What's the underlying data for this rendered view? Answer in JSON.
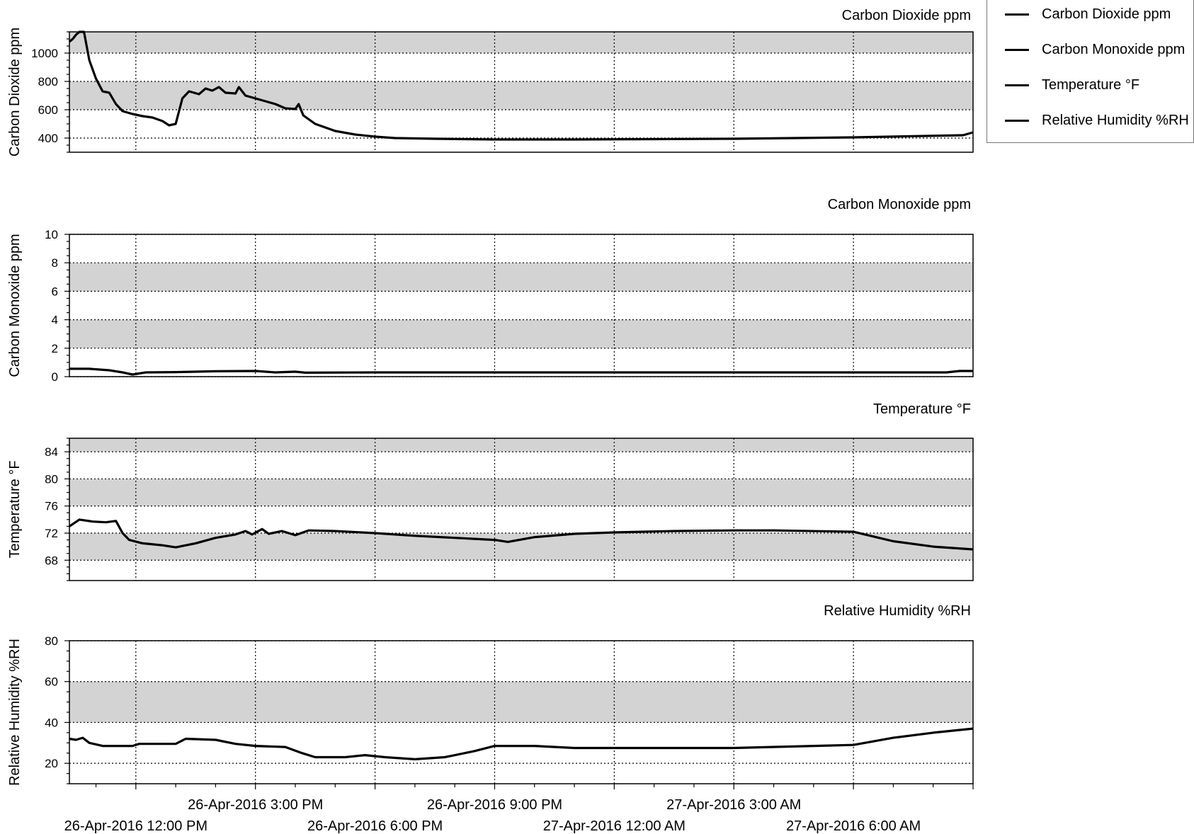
{
  "legend": {
    "items": [
      {
        "label": "Carbon Dioxide ppm",
        "color": "#000000"
      },
      {
        "label": "Carbon Monoxide ppm",
        "color": "#000000"
      },
      {
        "label": "Temperature °F",
        "color": "#000000"
      },
      {
        "label": "Relative Humidity %RH",
        "color": "#000000"
      }
    ]
  },
  "colors": {
    "band": "#d3d3d3",
    "line": "#000000",
    "grid": "#000000"
  },
  "x_axis": {
    "domain": [
      "2016-04-26T10:20",
      "2016-04-27T09:00"
    ],
    "gridlines": [
      "2016-04-26T12:00",
      "2016-04-26T15:00",
      "2016-04-26T18:00",
      "2016-04-26T21:00",
      "2016-04-27T00:00",
      "2016-04-27T03:00",
      "2016-04-27T06:00"
    ],
    "tick_labels_upper": [
      {
        "at": "2016-04-26T15:00",
        "label": "26-Apr-2016 3:00 PM"
      },
      {
        "at": "2016-04-26T21:00",
        "label": "26-Apr-2016 9:00 PM"
      },
      {
        "at": "2016-04-27T03:00",
        "label": "27-Apr-2016 3:00 AM"
      }
    ],
    "tick_labels_lower": [
      {
        "at": "2016-04-26T12:00",
        "label": "26-Apr-2016 12:00 PM"
      },
      {
        "at": "2016-04-26T18:00",
        "label": "26-Apr-2016 6:00 PM"
      },
      {
        "at": "2016-04-27T00:00",
        "label": "27-Apr-2016 12:00 AM"
      },
      {
        "at": "2016-04-27T06:00",
        "label": "27-Apr-2016 6:00 AM"
      }
    ]
  },
  "chart_data": [
    {
      "type": "line",
      "title": "Carbon Dioxide ppm",
      "ylabel": "Carbon Dioxide ppm",
      "ylim": [
        300,
        1150
      ],
      "yticks": [
        400,
        600,
        800,
        1000,
        1200
      ],
      "bands": [
        [
          600,
          800
        ],
        [
          1000,
          1200
        ]
      ],
      "grid": true,
      "legend": "top-right",
      "series": [
        {
          "name": "Carbon Dioxide ppm",
          "points": [
            [
              "2016-04-26T10:20",
              1080
            ],
            [
              "2016-04-26T10:25",
              1100
            ],
            [
              "2016-04-26T10:30",
              1130
            ],
            [
              "2016-04-26T10:35",
              1170
            ],
            [
              "2016-04-26T10:38",
              1255
            ],
            [
              "2016-04-26T10:42",
              1150
            ],
            [
              "2016-04-26T10:50",
              950
            ],
            [
              "2016-04-26T11:00",
              820
            ],
            [
              "2016-04-26T11:10",
              730
            ],
            [
              "2016-04-26T11:20",
              720
            ],
            [
              "2016-04-26T11:30",
              640
            ],
            [
              "2016-04-26T11:40",
              590
            ],
            [
              "2016-04-26T11:55",
              570
            ],
            [
              "2016-04-26T12:10",
              555
            ],
            [
              "2016-04-26T12:25",
              545
            ],
            [
              "2016-04-26T12:40",
              520
            ],
            [
              "2016-04-26T12:50",
              490
            ],
            [
              "2016-04-26T13:00",
              500
            ],
            [
              "2016-04-26T13:10",
              680
            ],
            [
              "2016-04-26T13:20",
              730
            ],
            [
              "2016-04-26T13:35",
              710
            ],
            [
              "2016-04-26T13:45",
              750
            ],
            [
              "2016-04-26T13:55",
              735
            ],
            [
              "2016-04-26T14:05",
              760
            ],
            [
              "2016-04-26T14:15",
              720
            ],
            [
              "2016-04-26T14:30",
              715
            ],
            [
              "2016-04-26T14:35",
              760
            ],
            [
              "2016-04-26T14:45",
              700
            ],
            [
              "2016-04-26T15:00",
              680
            ],
            [
              "2016-04-26T15:15",
              660
            ],
            [
              "2016-04-26T15:30",
              640
            ],
            [
              "2016-04-26T15:45",
              610
            ],
            [
              "2016-04-26T16:00",
              605
            ],
            [
              "2016-04-26T16:05",
              640
            ],
            [
              "2016-04-26T16:12",
              560
            ],
            [
              "2016-04-26T16:30",
              500
            ],
            [
              "2016-04-26T17:00",
              450
            ],
            [
              "2016-04-26T17:30",
              425
            ],
            [
              "2016-04-26T18:00",
              410
            ],
            [
              "2016-04-26T18:30",
              400
            ],
            [
              "2016-04-26T19:30",
              395
            ],
            [
              "2016-04-26T21:00",
              390
            ],
            [
              "2016-04-26T23:00",
              390
            ],
            [
              "2016-04-27T00:30",
              392
            ],
            [
              "2016-04-27T03:00",
              395
            ],
            [
              "2016-04-27T06:00",
              405
            ],
            [
              "2016-04-27T08:45",
              420
            ],
            [
              "2016-04-27T09:00",
              440
            ]
          ]
        }
      ]
    },
    {
      "type": "line",
      "title": "Carbon Monoxide ppm",
      "ylabel": "Carbon Monoxide ppm",
      "ylim": [
        0,
        10
      ],
      "yticks": [
        0,
        2,
        4,
        6,
        8,
        10
      ],
      "bands": [
        [
          2,
          4
        ],
        [
          6,
          8
        ]
      ],
      "grid": true,
      "series": [
        {
          "name": "Carbon Monoxide ppm",
          "points": [
            [
              "2016-04-26T10:20",
              0.55
            ],
            [
              "2016-04-26T10:50",
              0.55
            ],
            [
              "2016-04-26T11:20",
              0.45
            ],
            [
              "2016-04-26T11:40",
              0.3
            ],
            [
              "2016-04-26T11:55",
              0.15
            ],
            [
              "2016-04-26T12:15",
              0.3
            ],
            [
              "2016-04-26T13:00",
              0.32
            ],
            [
              "2016-04-26T14:00",
              0.38
            ],
            [
              "2016-04-26T15:00",
              0.4
            ],
            [
              "2016-04-26T15:30",
              0.3
            ],
            [
              "2016-04-26T16:00",
              0.35
            ],
            [
              "2016-04-26T16:15",
              0.28
            ],
            [
              "2016-04-26T18:00",
              0.3
            ],
            [
              "2016-04-27T00:00",
              0.3
            ],
            [
              "2016-04-27T08:20",
              0.3
            ],
            [
              "2016-04-27T08:40",
              0.4
            ],
            [
              "2016-04-27T09:00",
              0.4
            ]
          ]
        }
      ]
    },
    {
      "type": "line",
      "title": "Temperature °F",
      "ylabel": "Temperature °F",
      "ylim": [
        65,
        86
      ],
      "yticks": [
        68,
        72,
        76,
        80,
        84
      ],
      "bands": [
        [
          68,
          72
        ],
        [
          76,
          80
        ],
        [
          84,
          86
        ]
      ],
      "grid": true,
      "series": [
        {
          "name": "Temperature °F",
          "points": [
            [
              "2016-04-26T10:20",
              73.0
            ],
            [
              "2016-04-26T10:35",
              74.0
            ],
            [
              "2016-04-26T10:55",
              73.7
            ],
            [
              "2016-04-26T11:15",
              73.6
            ],
            [
              "2016-04-26T11:30",
              73.8
            ],
            [
              "2016-04-26T11:40",
              72.0
            ],
            [
              "2016-04-26T11:50",
              71.0
            ],
            [
              "2016-04-26T12:10",
              70.5
            ],
            [
              "2016-04-26T12:40",
              70.2
            ],
            [
              "2016-04-26T13:00",
              69.9
            ],
            [
              "2016-04-26T13:30",
              70.5
            ],
            [
              "2016-04-26T14:00",
              71.3
            ],
            [
              "2016-04-26T14:30",
              71.8
            ],
            [
              "2016-04-26T14:45",
              72.3
            ],
            [
              "2016-04-26T14:55",
              71.8
            ],
            [
              "2016-04-26T15:10",
              72.6
            ],
            [
              "2016-04-26T15:20",
              71.9
            ],
            [
              "2016-04-26T15:40",
              72.3
            ],
            [
              "2016-04-26T16:00",
              71.7
            ],
            [
              "2016-04-26T16:20",
              72.4
            ],
            [
              "2016-04-26T17:00",
              72.3
            ],
            [
              "2016-04-26T18:00",
              72.0
            ],
            [
              "2016-04-26T19:00",
              71.6
            ],
            [
              "2016-04-26T20:00",
              71.3
            ],
            [
              "2016-04-26T21:00",
              71.0
            ],
            [
              "2016-04-26T21:20",
              70.7
            ],
            [
              "2016-04-26T22:00",
              71.4
            ],
            [
              "2016-04-26T23:00",
              71.9
            ],
            [
              "2016-04-27T00:00",
              72.1
            ],
            [
              "2016-04-27T01:30",
              72.3
            ],
            [
              "2016-04-27T03:00",
              72.4
            ],
            [
              "2016-04-27T04:00",
              72.4
            ],
            [
              "2016-04-27T06:00",
              72.2
            ],
            [
              "2016-04-27T06:30",
              71.5
            ],
            [
              "2016-04-27T07:00",
              70.8
            ],
            [
              "2016-04-27T08:00",
              70.0
            ],
            [
              "2016-04-27T09:00",
              69.6
            ]
          ]
        }
      ]
    },
    {
      "type": "line",
      "title": "Relative Humidity %RH",
      "ylabel": "Relative Humidity %RH",
      "ylim": [
        10,
        80
      ],
      "yticks": [
        20,
        40,
        60,
        80
      ],
      "bands": [
        [
          40,
          60
        ]
      ],
      "grid": true,
      "series": [
        {
          "name": "Relative Humidity %RH",
          "points": [
            [
              "2016-04-26T10:20",
              32
            ],
            [
              "2016-04-26T10:30",
              31.5
            ],
            [
              "2016-04-26T10:40",
              32.5
            ],
            [
              "2016-04-26T10:50",
              30
            ],
            [
              "2016-04-26T11:10",
              28.5
            ],
            [
              "2016-04-26T11:55",
              28.5
            ],
            [
              "2016-04-26T12:05",
              29.5
            ],
            [
              "2016-04-26T13:00",
              29.5
            ],
            [
              "2016-04-26T13:15",
              32
            ],
            [
              "2016-04-26T14:00",
              31.5
            ],
            [
              "2016-04-26T14:30",
              29.5
            ],
            [
              "2016-04-26T15:00",
              28.5
            ],
            [
              "2016-04-26T15:45",
              28
            ],
            [
              "2016-04-26T16:10",
              25
            ],
            [
              "2016-04-26T16:30",
              23
            ],
            [
              "2016-04-26T17:15",
              23
            ],
            [
              "2016-04-26T17:45",
              24
            ],
            [
              "2016-04-26T18:15",
              23
            ],
            [
              "2016-04-26T19:00",
              22
            ],
            [
              "2016-04-26T19:45",
              23
            ],
            [
              "2016-04-26T20:30",
              26
            ],
            [
              "2016-04-26T21:00",
              28.5
            ],
            [
              "2016-04-26T22:00",
              28.5
            ],
            [
              "2016-04-26T23:00",
              27.5
            ],
            [
              "2016-04-27T03:00",
              27.5
            ],
            [
              "2016-04-27T05:00",
              28.5
            ],
            [
              "2016-04-27T06:00",
              29
            ],
            [
              "2016-04-27T07:00",
              32.5
            ],
            [
              "2016-04-27T08:00",
              35
            ],
            [
              "2016-04-27T09:00",
              37
            ]
          ]
        }
      ]
    }
  ]
}
